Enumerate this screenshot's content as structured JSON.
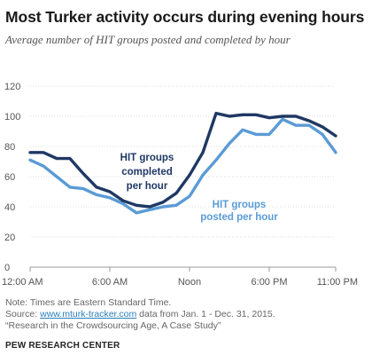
{
  "header": {
    "title": "Most Turker activity occurs during evening hours",
    "subtitle": "Average number of HIT groups posted and completed by hour"
  },
  "chart_data": {
    "type": "line",
    "title": "Most Turker activity occurs during evening hours",
    "subtitle": "Average number of HIT groups posted and completed by hour",
    "x": [
      0,
      1,
      2,
      3,
      4,
      5,
      6,
      7,
      8,
      9,
      10,
      11,
      12,
      13,
      14,
      15,
      16,
      17,
      18,
      19,
      20,
      21,
      22,
      23
    ],
    "xtick_positions": [
      0,
      6,
      12,
      18,
      23
    ],
    "xtick_labels": [
      "12:00 AM",
      "6:00 AM",
      "Noon",
      "6:00 PM",
      "11:00 PM"
    ],
    "yticks": [
      0,
      20,
      40,
      60,
      80,
      100,
      120
    ],
    "ylim": [
      0,
      120
    ],
    "xlim": [
      0,
      23
    ],
    "grid": true,
    "series": [
      {
        "name": "HIT groups completed per hour",
        "color": "#1f3864",
        "label_lines": [
          "HIT groups",
          "completed",
          "per hour"
        ],
        "values": [
          76,
          76,
          72,
          72,
          62,
          53,
          50,
          44,
          41,
          40,
          43,
          49,
          61,
          76,
          102,
          100,
          101,
          101,
          99,
          100,
          100,
          97,
          93,
          87
        ]
      },
      {
        "name": "HIT groups posted per hour",
        "color": "#5b9bd5",
        "label_lines": [
          "HIT groups",
          "posted  per hour"
        ],
        "values": [
          71,
          67,
          60,
          53,
          52,
          48,
          46,
          42,
          36,
          38,
          40,
          41,
          47,
          61,
          71,
          82,
          91,
          88,
          88,
          98,
          94,
          94,
          88,
          76
        ]
      }
    ]
  },
  "footer": {
    "note": "Note: Times are Eastern Standard Time.",
    "source_prefix": "Source: ",
    "source_link": "www.mturk-tracker.com",
    "source_suffix": " data from Jan. 1 - Dec. 31, 2015.",
    "report": "“Research in the Crowdsourcing Age, A Case Study”",
    "brand": "PEW RESEARCH CENTER"
  }
}
